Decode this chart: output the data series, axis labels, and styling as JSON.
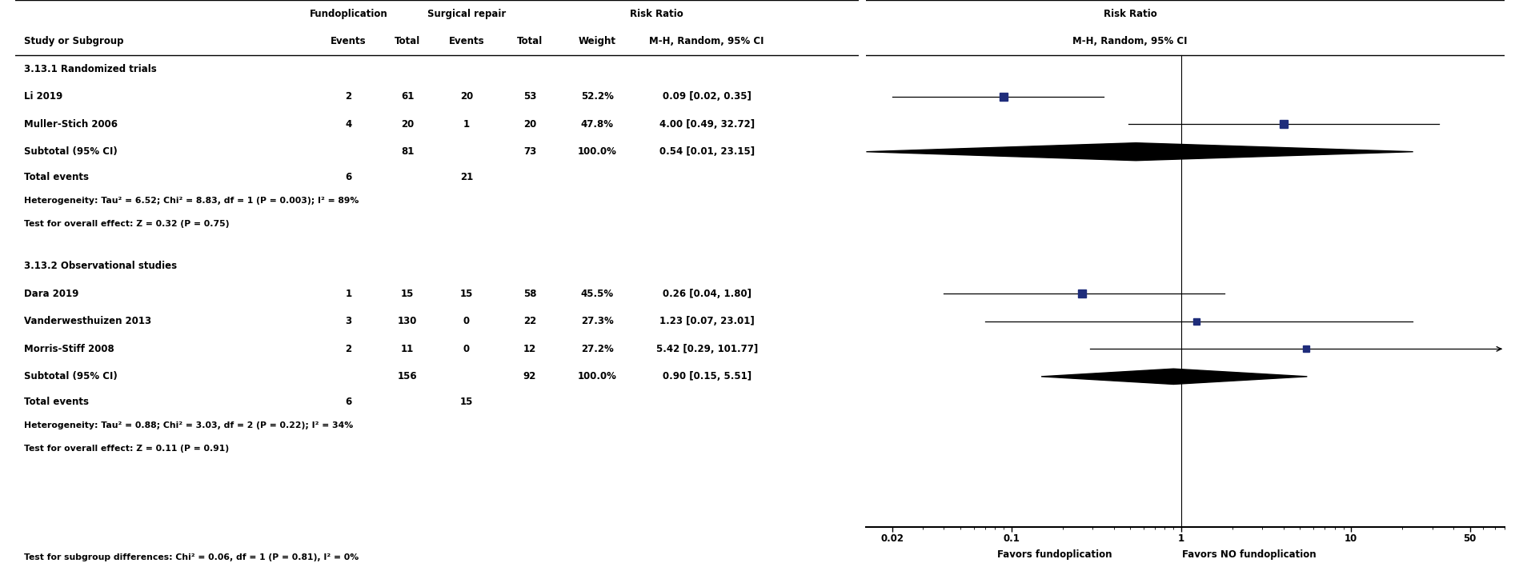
{
  "subgroup1_header": "3.13.1 Randomized trials",
  "subgroup1_studies": [
    {
      "name": "Li 2019",
      "f_events": 2,
      "f_total": 61,
      "sr_events": 20,
      "sr_total": 53,
      "weight": "52.2%",
      "rr": "0.09 [0.02, 0.35]",
      "rr_val": 0.09,
      "ci_lo": 0.02,
      "ci_hi": 0.35,
      "arrow": false
    },
    {
      "name": "Muller-Stich 2006",
      "f_events": 4,
      "f_total": 20,
      "sr_events": 1,
      "sr_total": 20,
      "weight": "47.8%",
      "rr": "4.00 [0.49, 32.72]",
      "rr_val": 4.0,
      "ci_lo": 0.49,
      "ci_hi": 32.72,
      "arrow": false
    }
  ],
  "subgroup1_subtotal": {
    "f_total": 81,
    "sr_total": 73,
    "weight": "100.0%",
    "rr": "0.54 [0.01, 23.15]",
    "rr_val": 0.54,
    "ci_lo": 0.01,
    "ci_hi": 23.15
  },
  "subgroup1_total_events": {
    "f_events": 6,
    "sr_events": 21
  },
  "subgroup1_heterogeneity": "Heterogeneity: Tau² = 6.52; Chi² = 8.83, df = 1 (P = 0.003); I² = 89%",
  "subgroup1_overall": "Test for overall effect: Z = 0.32 (P = 0.75)",
  "subgroup2_header": "3.13.2 Observational studies",
  "subgroup2_studies": [
    {
      "name": "Dara 2019",
      "f_events": 1,
      "f_total": 15,
      "sr_events": 15,
      "sr_total": 58,
      "weight": "45.5%",
      "rr": "0.26 [0.04, 1.80]",
      "rr_val": 0.26,
      "ci_lo": 0.04,
      "ci_hi": 1.8,
      "arrow": false
    },
    {
      "name": "Vanderwesthuizen 2013",
      "f_events": 3,
      "f_total": 130,
      "sr_events": 0,
      "sr_total": 22,
      "weight": "27.3%",
      "rr": "1.23 [0.07, 23.01]",
      "rr_val": 1.23,
      "ci_lo": 0.07,
      "ci_hi": 23.01,
      "arrow": false
    },
    {
      "name": "Morris-Stiff 2008",
      "f_events": 2,
      "f_total": 11,
      "sr_events": 0,
      "sr_total": 12,
      "weight": "27.2%",
      "rr": "5.42 [0.29, 101.77]",
      "rr_val": 5.42,
      "ci_lo": 0.29,
      "ci_hi": 101.77,
      "arrow": true
    }
  ],
  "subgroup2_subtotal": {
    "f_total": 156,
    "sr_total": 92,
    "weight": "100.0%",
    "rr": "0.90 [0.15, 5.51]",
    "rr_val": 0.9,
    "ci_lo": 0.15,
    "ci_hi": 5.51
  },
  "subgroup2_total_events": {
    "f_events": 6,
    "sr_events": 15
  },
  "subgroup2_heterogeneity": "Heterogeneity: Tau² = 0.88; Chi² = 3.03, df = 2 (P = 0.22); I² = 34%",
  "subgroup2_overall": "Test for overall effect: Z = 0.11 (P = 0.91)",
  "bottom_note": "Test for subgroup differences: Chi² = 0.06, df = 1 (P = 0.81), I² = 0%",
  "x_label_left": "Favors fundoplication",
  "x_label_right": "Favors NO fundoplication",
  "square_color": "#1f2d7b",
  "diamond_color": "#000000",
  "line_color": "#000000",
  "text_color": "#000000",
  "bg_color": "#ffffff"
}
